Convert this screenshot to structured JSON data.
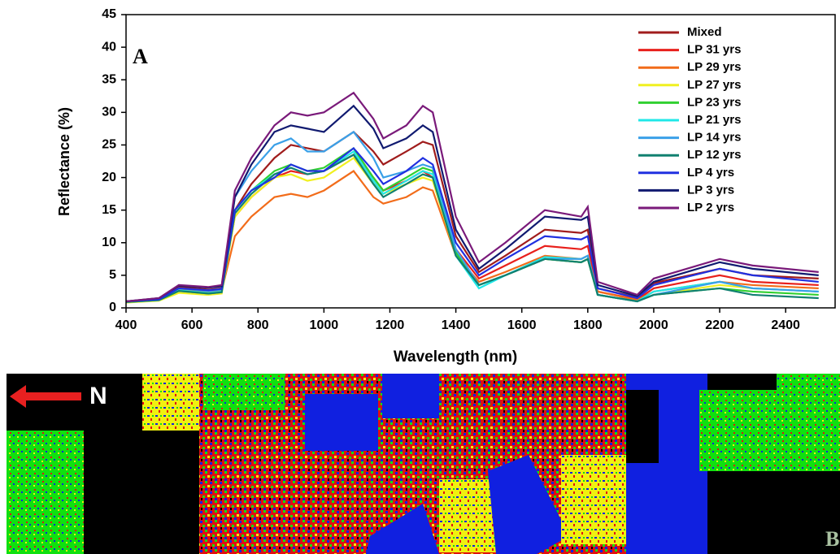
{
  "chart_data": {
    "type": "line",
    "x_label": "Wavelength (nm)",
    "y_label": "Reflectance (%)",
    "xlim": [
      400,
      2550
    ],
    "ylim": [
      0,
      45
    ],
    "xticks": [
      400,
      600,
      800,
      1000,
      1200,
      1400,
      1600,
      1800,
      2000,
      2200,
      2400
    ],
    "yticks": [
      0,
      5,
      10,
      15,
      20,
      25,
      30,
      35,
      40,
      45
    ],
    "x": [
      400,
      500,
      560,
      650,
      690,
      730,
      780,
      850,
      900,
      950,
      1000,
      1090,
      1150,
      1180,
      1250,
      1300,
      1330,
      1400,
      1470,
      1550,
      1670,
      1780,
      1800,
      1830,
      1950,
      2000,
      2200,
      2300,
      2500
    ],
    "series": [
      {
        "name": "Mixed",
        "color": "#a01c1c",
        "values": [
          1,
          1.4,
          3.2,
          2.8,
          3,
          15,
          19,
          23,
          25,
          24.5,
          24,
          27,
          24,
          22,
          24,
          25.5,
          25,
          11,
          5.5,
          8,
          12,
          11.5,
          12,
          3,
          1.6,
          3.8,
          6,
          5,
          4.5
        ]
      },
      {
        "name": "LP 31 yrs",
        "color": "#e8201c",
        "values": [
          1,
          1.3,
          3,
          2.6,
          2.8,
          14,
          17,
          20,
          21,
          20.5,
          21,
          23.5,
          20,
          18,
          19.5,
          21,
          20,
          9,
          4.5,
          6.5,
          9.5,
          9,
          9.5,
          2.5,
          1.3,
          3,
          5,
          4,
          3.5
        ]
      },
      {
        "name": "LP 29 yrs",
        "color": "#f26c1a",
        "values": [
          1,
          1.2,
          2.8,
          2.4,
          2.6,
          11,
          14,
          17,
          17.5,
          17,
          18,
          21,
          17,
          16,
          17,
          18.5,
          18,
          8,
          4,
          5.5,
          8,
          7.5,
          8,
          2.5,
          1.2,
          2.5,
          4,
          3.5,
          3
        ]
      },
      {
        "name": "LP 27 yrs",
        "color": "#f0f020",
        "values": [
          0.8,
          1.1,
          2.3,
          2,
          2.2,
          14,
          17,
          20,
          20.5,
          19.5,
          20,
          23,
          19,
          17.5,
          19,
          20,
          19.5,
          8,
          3.5,
          5,
          7.5,
          7,
          7.5,
          2,
          1,
          2,
          3.5,
          3,
          2.5
        ]
      },
      {
        "name": "LP 23 yrs",
        "color": "#30d030",
        "values": [
          0.9,
          1.2,
          2.6,
          2.2,
          2.4,
          15,
          18,
          21,
          22,
          21,
          21.5,
          24.5,
          20,
          18,
          20,
          21.5,
          21,
          8.5,
          3.5,
          5,
          7.5,
          7,
          7.5,
          2,
          1,
          2,
          3,
          2.5,
          2
        ]
      },
      {
        "name": "LP 21 yrs",
        "color": "#20e8e8",
        "values": [
          0.9,
          1.2,
          2.7,
          2.3,
          2.5,
          15,
          18,
          20.5,
          21.5,
          20.5,
          21,
          24,
          19.5,
          17.5,
          19.5,
          21,
          20.5,
          8,
          3,
          5,
          7.8,
          7.5,
          8,
          2,
          1,
          2.5,
          4,
          3,
          2.5
        ]
      },
      {
        "name": "LP 14 yrs",
        "color": "#3aa0e8",
        "values": [
          1,
          1.3,
          3,
          2.6,
          2.8,
          17,
          21,
          25,
          26,
          24,
          24,
          27,
          23,
          20,
          21,
          22,
          21.5,
          9,
          3.5,
          5,
          7.5,
          7.5,
          8,
          2,
          1,
          2,
          4,
          3,
          2.5
        ]
      },
      {
        "name": "LP 12 yrs",
        "color": "#108070",
        "values": [
          0.9,
          1.2,
          2.6,
          2.2,
          2.4,
          14.5,
          17.5,
          20.5,
          21.5,
          20.5,
          21,
          23.5,
          19,
          17,
          19,
          20.5,
          20,
          8,
          3.5,
          5,
          7.5,
          7,
          7.5,
          2,
          1,
          2,
          3,
          2,
          1.5
        ]
      },
      {
        "name": "LP 4 yrs",
        "color": "#2030e0",
        "values": [
          1,
          1.3,
          3,
          2.7,
          2.9,
          15,
          18,
          20,
          22,
          21,
          21,
          24.5,
          21,
          19,
          21,
          23,
          22,
          10,
          5,
          7.5,
          11,
          10.5,
          11,
          3,
          1.5,
          3.5,
          6,
          5,
          4
        ]
      },
      {
        "name": "LP 3 yrs",
        "color": "#101a70",
        "values": [
          1,
          1.5,
          3.4,
          3.1,
          3.3,
          17,
          22,
          27,
          28,
          27.5,
          27,
          31,
          27.5,
          24.5,
          26,
          28,
          27,
          12,
          6,
          9,
          14,
          13.5,
          14,
          3.5,
          1.8,
          4,
          7,
          6,
          5
        ]
      },
      {
        "name": "LP 2 yrs",
        "color": "#7a1a7a",
        "values": [
          1,
          1.5,
          3.5,
          3.2,
          3.5,
          18,
          23,
          28,
          30,
          29.5,
          30,
          33,
          29,
          26,
          28,
          31,
          30,
          14,
          7,
          10,
          15,
          14,
          15.5,
          4,
          2,
          4.5,
          7.5,
          6.5,
          5.5
        ]
      }
    ]
  },
  "panel_labels": {
    "top": "A",
    "bottom": "B"
  },
  "map": {
    "north_label": "N"
  }
}
